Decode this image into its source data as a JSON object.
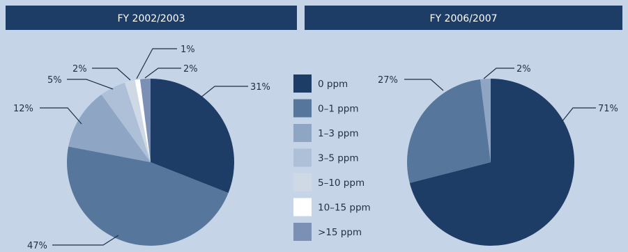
{
  "chart_data": [
    {
      "type": "pie",
      "title": "FY 2002/2003",
      "categories": [
        "0 ppm",
        "0–1 ppm",
        "1–3 ppm",
        "3–5 ppm",
        "5–10 ppm",
        "10–15 ppm",
        ">15 ppm"
      ],
      "values": [
        31,
        47,
        12,
        5,
        2,
        1,
        2
      ],
      "labels": [
        "31%",
        "47%",
        "12%",
        "5%",
        "2%",
        "1%",
        "2%"
      ],
      "colors": [
        "#1e3d66",
        "#56769b",
        "#8ea5c4",
        "#adc0d7",
        "#cfd9e6",
        "#ffffff",
        "#7c8fb5"
      ]
    },
    {
      "type": "pie",
      "title": "FY 2006/2007",
      "categories": [
        "0 ppm",
        "0–1 ppm",
        "1–3 ppm"
      ],
      "values": [
        71,
        27,
        2
      ],
      "labels": [
        "71%",
        "27%",
        "2%"
      ],
      "colors": [
        "#1e3d66",
        "#56769b",
        "#8ea5c4"
      ]
    }
  ],
  "legend": {
    "items": [
      {
        "label": "0 ppm",
        "color": "#1e3d66"
      },
      {
        "label": "0–1 ppm",
        "color": "#56769b"
      },
      {
        "label": "1–3 ppm",
        "color": "#8ea5c4"
      },
      {
        "label": "3–5 ppm",
        "color": "#adc0d7"
      },
      {
        "label": "5–10 ppm",
        "color": "#cfd9e6"
      },
      {
        "label": "10–15 ppm",
        "color": "#ffffff"
      },
      {
        "label": ">15 ppm",
        "color": "#7c8fb5"
      }
    ]
  },
  "colors": {
    "background": "#c5d5e7",
    "header": "#1e3d66",
    "text": "#1f2f45"
  }
}
